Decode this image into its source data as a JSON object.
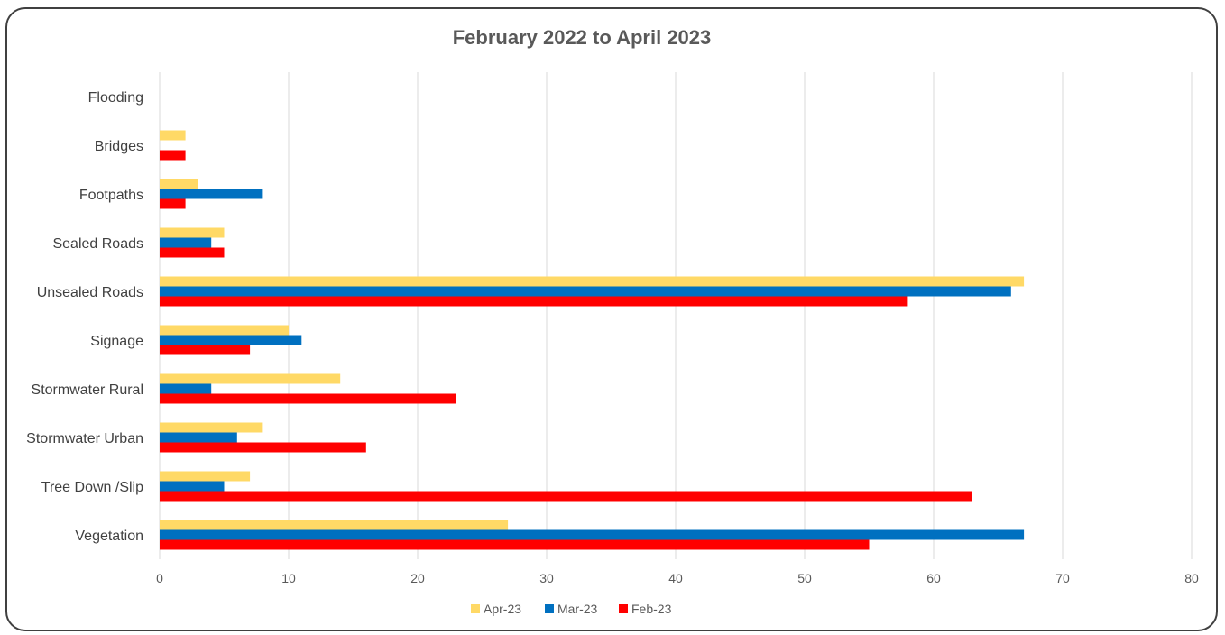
{
  "chart_data": {
    "type": "bar",
    "orientation": "horizontal",
    "title": "February 2022 to April 2023",
    "categories": [
      "Flooding",
      "Bridges",
      "Footpaths",
      "Sealed Roads",
      "Unsealed Roads",
      "Signage",
      "Stormwater Rural",
      "Stormwater Urban",
      "Tree Down /Slip",
      "Vegetation"
    ],
    "series": [
      {
        "name": "Apr-23",
        "color": "#FFD966",
        "values": [
          0,
          2,
          3,
          5,
          67,
          10,
          14,
          8,
          7,
          27
        ]
      },
      {
        "name": "Mar-23",
        "color": "#0070C0",
        "values": [
          0,
          0,
          8,
          4,
          66,
          11,
          4,
          6,
          5,
          67
        ]
      },
      {
        "name": "Feb-23",
        "color": "#FF0000",
        "values": [
          0,
          2,
          2,
          5,
          58,
          7,
          23,
          16,
          63,
          55
        ]
      }
    ],
    "xlim": [
      0,
      80
    ],
    "xticks": [
      0,
      10,
      20,
      30,
      40,
      50,
      60,
      70,
      80
    ],
    "grid": true,
    "legend_position": "bottom"
  }
}
